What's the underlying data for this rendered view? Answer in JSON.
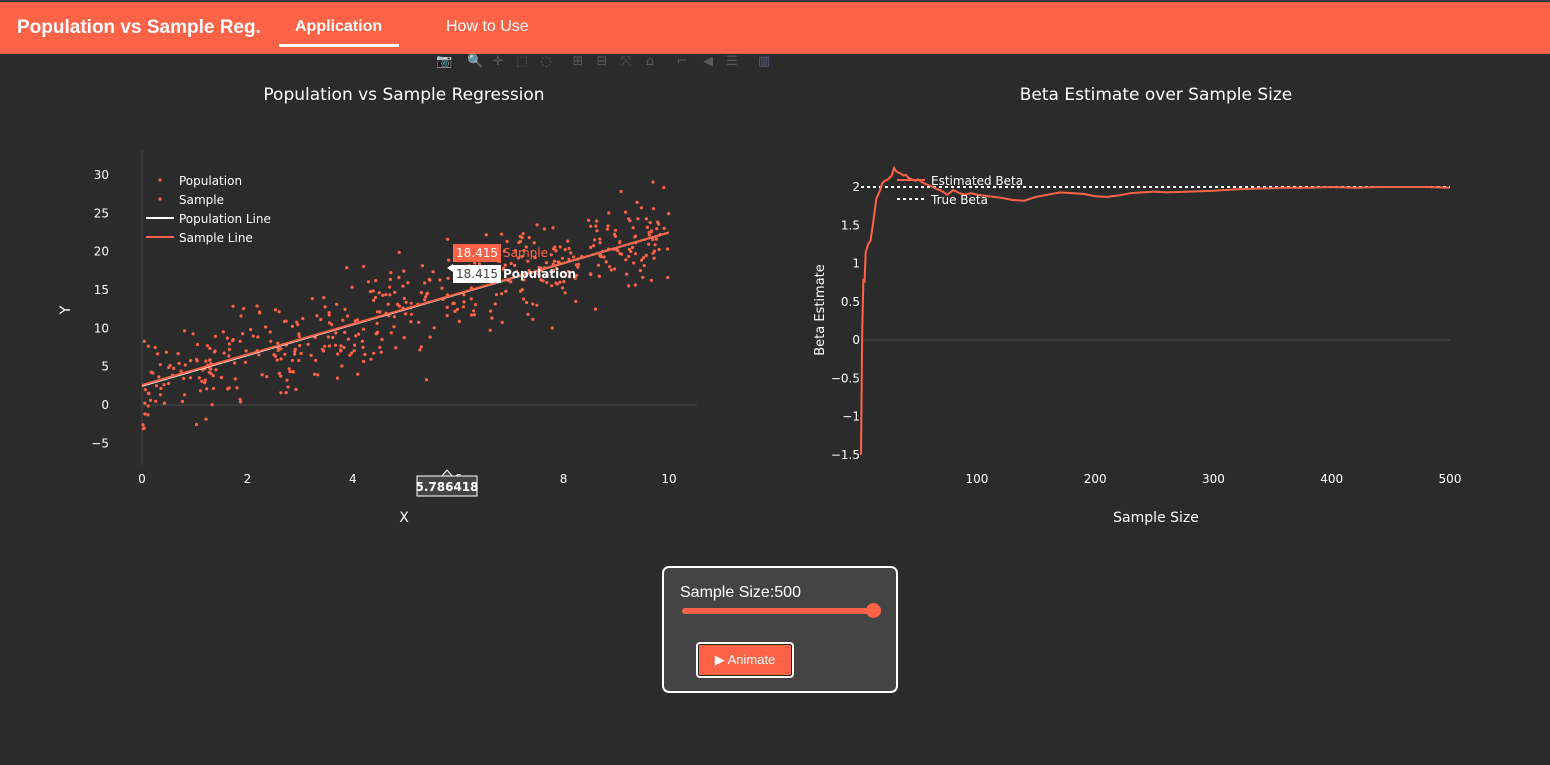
{
  "navbar": {
    "brand": "Population vs Sample Reg.",
    "tabs": [
      {
        "label": "Application",
        "active": true
      },
      {
        "label": "How to Use",
        "active": false
      }
    ],
    "bg_color": "#ff6347"
  },
  "modebar": {
    "icons": [
      "camera-icon",
      "zoom-icon",
      "pan-icon",
      "box-select-icon",
      "lasso-icon",
      "zoom-in-icon",
      "zoom-out-icon",
      "autoscale-icon",
      "home-icon",
      "spike-lines-icon",
      "hover-closest-icon",
      "hover-compare-icon",
      "plotly-logo-icon"
    ]
  },
  "chart_data": [
    {
      "type": "scatter",
      "title": "Population vs Sample Regression",
      "xlabel": "X",
      "ylabel": "Y",
      "xlim": [
        0,
        10.5
      ],
      "ylim": [
        -8.5,
        33
      ],
      "xticks": [
        0,
        2,
        4,
        6,
        8,
        10
      ],
      "yticks": [
        -5,
        0,
        5,
        10,
        15,
        20,
        25,
        30
      ],
      "legend": [
        "Population",
        "Sample",
        "Population Line",
        "Sample Line"
      ],
      "lines": [
        {
          "name": "Population Line",
          "intercept": 2.5,
          "slope": 2.0,
          "color": "#ffffff"
        },
        {
          "name": "Sample Line",
          "intercept": 2.6,
          "slope": 1.99,
          "color": "#ff6347"
        }
      ],
      "points_color": "#ff6347",
      "sample_size": 500,
      "hover": {
        "x": "5.786418",
        "sample_value": "18.415",
        "sample_label": "Sample",
        "population_value": "18.415",
        "population_label": "Population"
      }
    },
    {
      "type": "line",
      "title": "Beta Estimate over Sample Size",
      "xlabel": "Sample Size",
      "ylabel": "Beta Estimate",
      "xlim": [
        0,
        500
      ],
      "ylim": [
        -1.55,
        2.3
      ],
      "xticks": [
        100,
        200,
        300,
        400,
        500
      ],
      "yticks": [
        -1.5,
        -1,
        -0.5,
        0,
        0.5,
        1,
        1.5,
        2
      ],
      "legend": [
        "Estimated Beta",
        "True Beta"
      ],
      "true_beta": 2,
      "series": [
        {
          "name": "Estimated Beta",
          "color": "#ff6347",
          "x": [
            2,
            3,
            4,
            5,
            6,
            8,
            10,
            12,
            15,
            18,
            20,
            22,
            25,
            28,
            30,
            32,
            35,
            38,
            40,
            42,
            45,
            48,
            50,
            55,
            60,
            65,
            70,
            75,
            80,
            85,
            90,
            95,
            100,
            110,
            120,
            130,
            140,
            150,
            160,
            170,
            180,
            190,
            200,
            210,
            220,
            230,
            240,
            250,
            260,
            280,
            300,
            320,
            340,
            360,
            380,
            400,
            420,
            440,
            460,
            480,
            500
          ],
          "y": [
            -1.5,
            0.1,
            0.8,
            0.75,
            1.15,
            1.25,
            1.3,
            1.5,
            1.85,
            1.95,
            2.05,
            2.08,
            2.1,
            2.15,
            2.25,
            2.2,
            2.18,
            2.15,
            2.16,
            2.12,
            2.1,
            2.08,
            2.1,
            2.05,
            2.02,
            1.98,
            1.95,
            1.9,
            1.96,
            1.92,
            1.9,
            1.92,
            1.9,
            1.88,
            1.86,
            1.83,
            1.82,
            1.87,
            1.9,
            1.93,
            1.92,
            1.91,
            1.88,
            1.87,
            1.89,
            1.92,
            1.93,
            1.94,
            1.93,
            1.94,
            1.95,
            1.97,
            1.98,
            1.99,
            1.99,
            2.0,
            1.99,
            2.0,
            2.0,
            2.0,
            1.99
          ]
        }
      ]
    }
  ],
  "controls": {
    "slider_label": "Sample Size:500",
    "slider_value": 500,
    "slider_max": 500,
    "animate_label": "▶ Animate"
  },
  "colors": {
    "accent": "#ff6347",
    "background": "#2b2b2b",
    "panel": "#444444"
  }
}
